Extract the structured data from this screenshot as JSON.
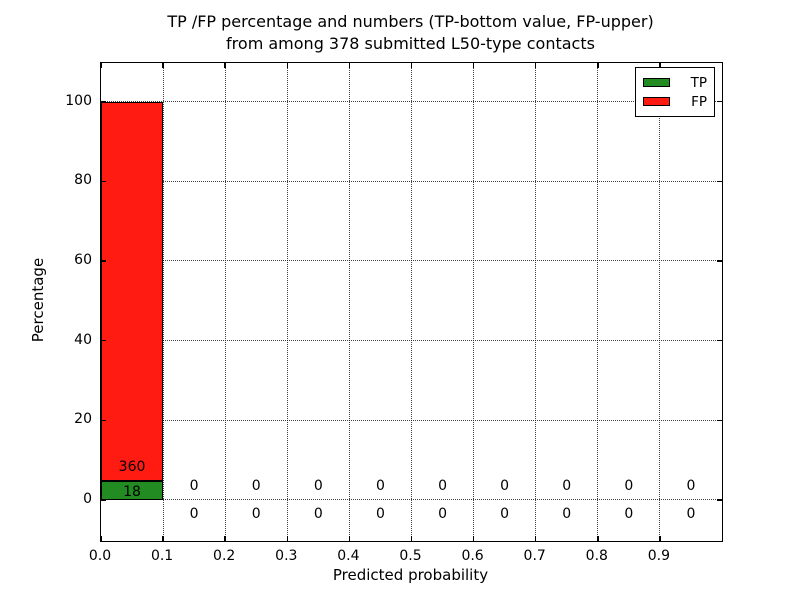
{
  "chart_data": {
    "type": "bar",
    "stacked": true,
    "title_line1": "TP /FP percentage and numbers (TP-bottom value, FP-upper)",
    "title_line2": "from among 378 submitted L50-type contacts",
    "xlabel": "Predicted probability",
    "ylabel": "Percentage",
    "total_contacts": 378,
    "grid": "dotted",
    "xlim": [
      0.0,
      1.0
    ],
    "ylim": [
      -10.3,
      109.7
    ],
    "x_ticks": [
      0.0,
      0.1,
      0.2,
      0.3,
      0.4,
      0.5,
      0.6,
      0.7,
      0.8,
      0.9
    ],
    "x_tick_labels": [
      "0.0",
      "0.1",
      "0.2",
      "0.3",
      "0.4",
      "0.5",
      "0.6",
      "0.7",
      "0.8",
      "0.9"
    ],
    "y_ticks": [
      0,
      20,
      40,
      60,
      80,
      100
    ],
    "y_tick_labels": [
      "0",
      "20",
      "40",
      "60",
      "80",
      "100"
    ],
    "bin_width": 0.1,
    "bin_centers": [
      0.05,
      0.15,
      0.25,
      0.35,
      0.45,
      0.55,
      0.65,
      0.75,
      0.85,
      0.95
    ],
    "series": [
      {
        "name": "TP",
        "color": "#228b22",
        "counts": [
          18,
          0,
          0,
          0,
          0,
          0,
          0,
          0,
          0,
          0
        ],
        "percentages": [
          4.76,
          0,
          0,
          0,
          0,
          0,
          0,
          0,
          0,
          0
        ]
      },
      {
        "name": "FP",
        "color": "#ff1a12",
        "counts": [
          360,
          0,
          0,
          0,
          0,
          0,
          0,
          0,
          0,
          0
        ],
        "percentages": [
          95.24,
          0,
          0,
          0,
          0,
          0,
          0,
          0,
          0,
          0
        ]
      }
    ],
    "legend": {
      "position": "upper right",
      "entries": [
        {
          "label": "TP",
          "color": "#228b22"
        },
        {
          "label": "FP",
          "color": "#ff1a12"
        }
      ]
    }
  }
}
